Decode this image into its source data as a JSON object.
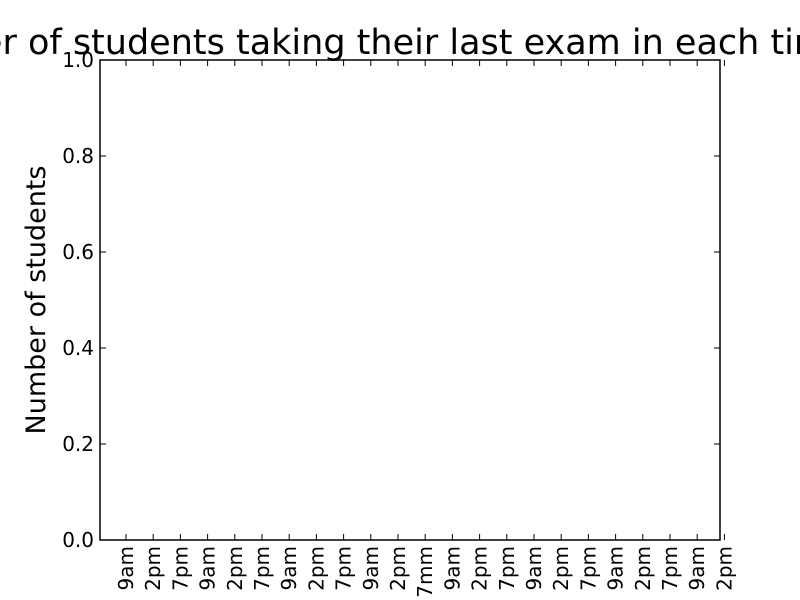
{
  "chart_data": {
    "type": "bar",
    "title": "Number of students taking their last exam in each time slot",
    "xlabel": "",
    "ylabel": "Number of students",
    "ylim": [
      0,
      1
    ],
    "yticks": [
      "0.0",
      "0.2",
      "0.4",
      "0.6",
      "0.8",
      "1.0"
    ],
    "categories": [
      "9am",
      "2pm",
      "7pm",
      "9am",
      "2pm",
      "7pm",
      "9am",
      "2pm",
      "7pm",
      "9am",
      "2pm",
      "7mm",
      "9am",
      "2pm",
      "7pm",
      "9am",
      "2pm",
      "7pm",
      "9am",
      "2pm",
      "7pm",
      "9am",
      "2pm"
    ],
    "values": [
      0,
      0,
      0,
      0,
      0,
      0,
      0,
      0,
      0,
      0,
      0,
      0,
      0,
      0,
      0,
      0,
      0,
      0,
      0,
      0,
      0,
      0,
      0
    ],
    "grid": false,
    "colors": {
      "axis": "#000000",
      "background": "#ffffff",
      "bar": "#0000ff"
    }
  }
}
